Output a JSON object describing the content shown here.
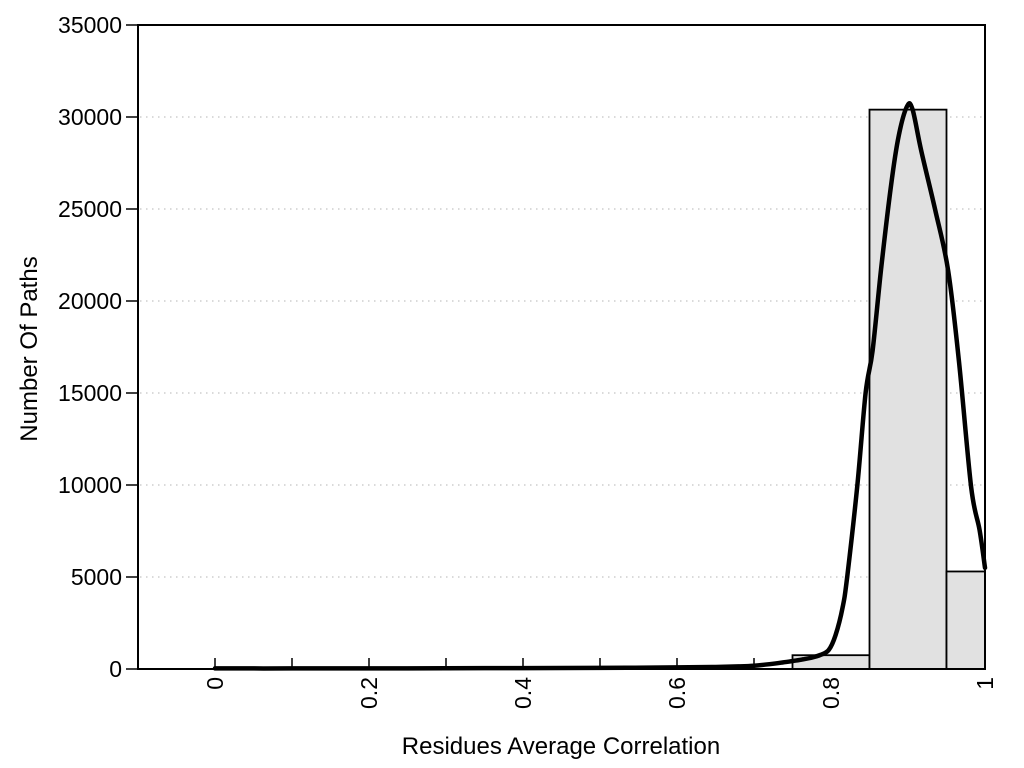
{
  "page": {
    "background_color": "#ffffff"
  },
  "chart_data": {
    "type": "bar",
    "subtype": "histogram_with_density_curve",
    "title": "",
    "xlabel": "Residues Average Correlation",
    "ylabel": "Number Of Paths",
    "xlim": [
      -0.1,
      1.0
    ],
    "ylim": [
      0,
      35000
    ],
    "x_tick_labels": [
      "0",
      "0.2",
      "0.4",
      "0.6",
      "0.8",
      "1"
    ],
    "x_tick_label_values": [
      0,
      0.2,
      0.4,
      0.6,
      0.8,
      1
    ],
    "x_minor_tick_values": [
      0,
      0.1,
      0.2,
      0.3,
      0.4,
      0.5,
      0.6,
      0.7,
      0.8,
      0.9,
      1.0
    ],
    "x_tick_label_rotation_deg": -90,
    "y_tick_labels": [
      "0",
      "5000",
      "10000",
      "15000",
      "20000",
      "25000",
      "30000",
      "35000"
    ],
    "y_tick_values": [
      0,
      5000,
      10000,
      15000,
      20000,
      25000,
      30000,
      35000
    ],
    "grid": {
      "horizontal": true,
      "vertical": false,
      "style": "dotted",
      "values": [
        5000,
        10000,
        15000,
        20000,
        25000,
        30000
      ]
    },
    "legend": null,
    "bars": [
      {
        "bin_start": 0.75,
        "bin_end": 0.85,
        "count": 750
      },
      {
        "bin_start": 0.85,
        "bin_end": 0.95,
        "count": 30400
      },
      {
        "bin_start": 0.95,
        "bin_end": 1.0,
        "count": 5300
      }
    ],
    "curve": {
      "name": "density-fit",
      "points": [
        [
          0.0,
          30
        ],
        [
          0.1,
          30
        ],
        [
          0.2,
          35
        ],
        [
          0.3,
          40
        ],
        [
          0.4,
          50
        ],
        [
          0.5,
          60
        ],
        [
          0.6,
          85
        ],
        [
          0.65,
          110
        ],
        [
          0.68,
          140
        ],
        [
          0.7,
          180
        ],
        [
          0.72,
          260
        ],
        [
          0.735,
          340
        ],
        [
          0.75,
          430
        ],
        [
          0.763,
          520
        ],
        [
          0.773,
          600
        ],
        [
          0.786,
          760
        ],
        [
          0.797,
          1030
        ],
        [
          0.806,
          1850
        ],
        [
          0.815,
          3320
        ],
        [
          0.821,
          5000
        ],
        [
          0.834,
          9900
        ],
        [
          0.845,
          15000
        ],
        [
          0.854,
          17300
        ],
        [
          0.865,
          21700
        ],
        [
          0.878,
          26300
        ],
        [
          0.888,
          29000
        ],
        [
          0.899,
          30600
        ],
        [
          0.906,
          30400
        ],
        [
          0.917,
          28200
        ],
        [
          0.935,
          25000
        ],
        [
          0.952,
          21700
        ],
        [
          0.966,
          16800
        ],
        [
          0.982,
          9900
        ],
        [
          0.993,
          7550
        ],
        [
          1.0,
          5500
        ]
      ]
    },
    "colors": {
      "bar_fill": "#e1e1e1",
      "bar_edge": "#000000",
      "curve": "#000000",
      "grid": "#c4c4c4",
      "axis": "#000000",
      "text": "#000000",
      "background": "#ffffff"
    }
  }
}
